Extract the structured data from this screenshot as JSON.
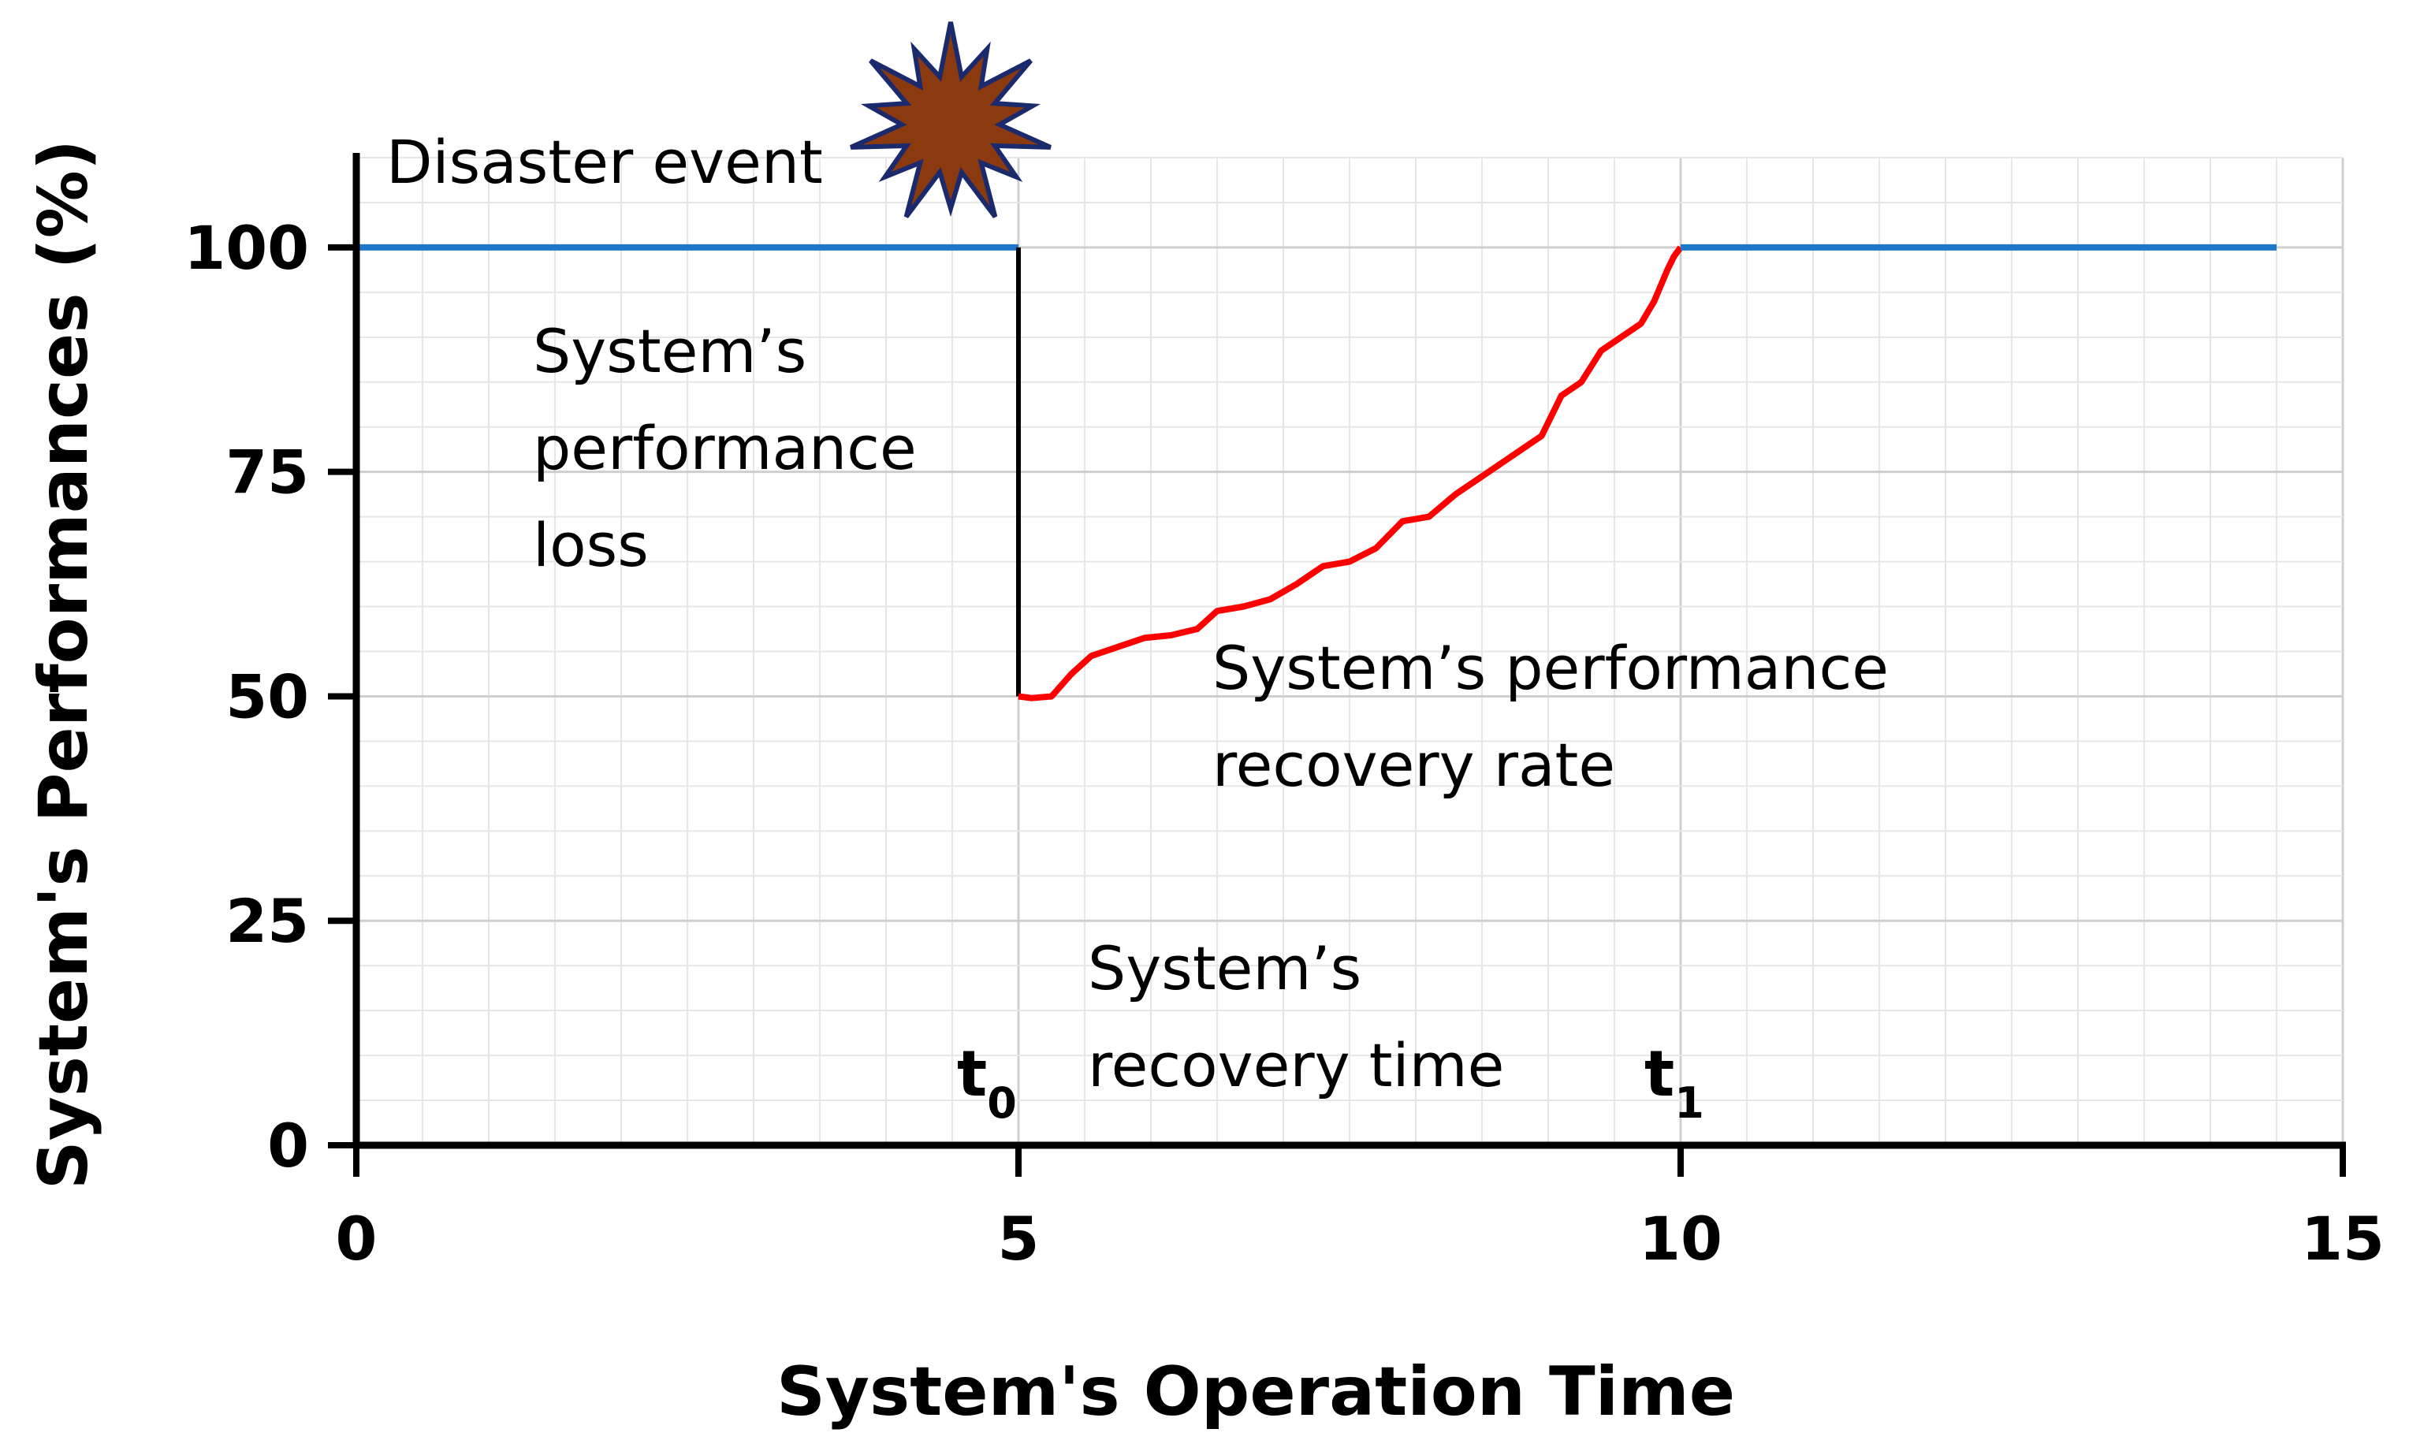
{
  "chart_data": {
    "type": "line",
    "xlabel": "System's Operation Time",
    "ylabel": "System's  Performances (%)",
    "xlim": [
      0,
      15
    ],
    "ylim": [
      0,
      110
    ],
    "x_ticks": [
      "0",
      "5",
      "10",
      "15"
    ],
    "y_ticks": [
      "0",
      "25",
      "50",
      "75",
      "100"
    ],
    "grid": true,
    "series": [
      {
        "color": "#1f77c9",
        "x": [
          0,
          5
        ],
        "y": [
          100,
          100
        ]
      },
      {
        "color": "#000000",
        "x": [
          5,
          5
        ],
        "y": [
          100,
          50
        ]
      },
      {
        "color": "#ff0000",
        "x": [
          5.0,
          5.1,
          5.25,
          5.4,
          5.55,
          5.75,
          5.95,
          6.15,
          6.35,
          6.5,
          6.7,
          6.9,
          7.1,
          7.3,
          7.5,
          7.7,
          7.9,
          8.1,
          8.3,
          8.5,
          8.7,
          8.95,
          9.1,
          9.25,
          9.4,
          9.55,
          9.7,
          9.8,
          9.9,
          9.95,
          10.0
        ],
        "y": [
          50,
          49.8,
          50,
          52.5,
          54.5,
          55.5,
          56.5,
          56.8,
          57.5,
          59.5,
          60,
          60.8,
          62.5,
          64.5,
          65,
          66.5,
          69.5,
          70,
          72.5,
          74.5,
          76.5,
          79,
          83.5,
          85,
          88.5,
          90,
          91.5,
          94,
          97.5,
          99,
          100
        ]
      },
      {
        "color": "#1f77c9",
        "x": [
          10,
          14.5
        ],
        "y": [
          100,
          100
        ]
      }
    ],
    "annotations": {
      "disaster": "Disaster event",
      "loss": [
        "System’s",
        "performance",
        "loss"
      ],
      "rate": [
        "System’s  performance",
        "recovery rate"
      ],
      "recovery_time": [
        "System’s",
        "recovery time"
      ],
      "t0": {
        "base": "t",
        "sub": "0",
        "x": 5
      },
      "t1": {
        "base": "t",
        "sub": "1",
        "x": 10
      }
    },
    "burst_icon": "explosion-burst-icon",
    "burst_color": "#8b3a0f",
    "burst_outline": "#1a2a6c"
  }
}
